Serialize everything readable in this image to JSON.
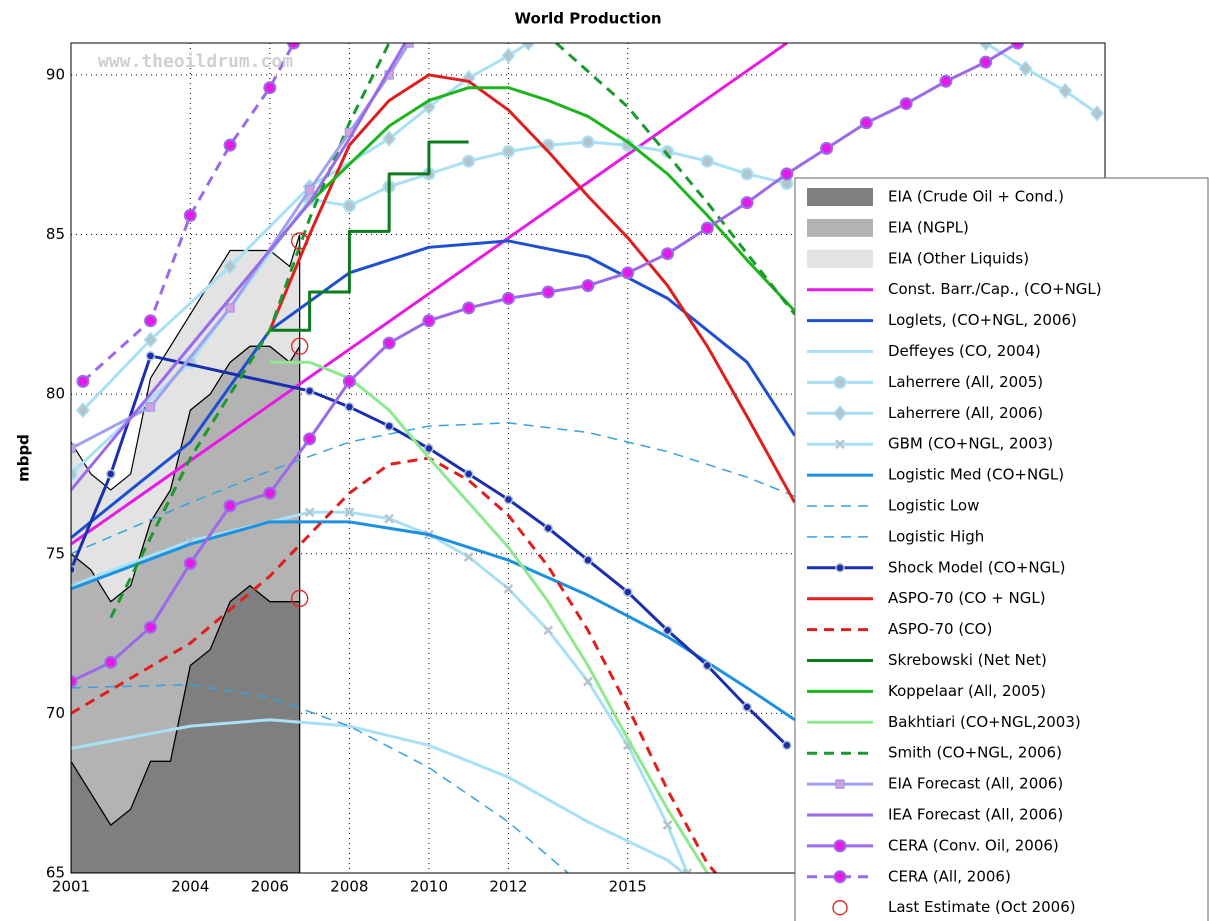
{
  "chart_data": {
    "type": "line",
    "title": "World Production",
    "ylabel": "mbpd",
    "watermark": "www.theoildrum.com",
    "xlim": [
      2001,
      2027
    ],
    "ylim": [
      65,
      91
    ],
    "xticks": [
      2001,
      2004,
      2006,
      2008,
      2010,
      2012,
      2015
    ],
    "yticks": [
      65,
      70,
      75,
      80,
      85,
      90
    ],
    "grid": true,
    "legend": "right",
    "areas": {
      "x": [
        2001,
        2001.5,
        2002,
        2002.5,
        2003,
        2003.5,
        2004,
        2004.5,
        2005,
        2005.5,
        2006,
        2006.5,
        2006.75
      ],
      "series": [
        {
          "name": "EIA (Crude Oil + Cond.)",
          "color": "#7f7f7f",
          "values": [
            68.5,
            67.5,
            66.5,
            67,
            68.5,
            68.5,
            71.5,
            72,
            73.5,
            74,
            73.5,
            73.5,
            73.5
          ]
        },
        {
          "name": "EIA (NGPL)",
          "color": "#b3b3b3",
          "values": [
            6.5,
            7,
            7,
            7,
            7.5,
            8.5,
            8,
            8,
            7.5,
            7.5,
            8,
            7.5,
            8
          ]
        },
        {
          "name": "EIA (Other Liquids)",
          "color": "#e3e3e3",
          "values": [
            3.5,
            3,
            3.5,
            3.5,
            4.5,
            4.5,
            3,
            3.5,
            3.5,
            3,
            3,
            3,
            3.5
          ]
        }
      ]
    },
    "series": [
      {
        "name": "Const. Barr./Cap., (CO+NGL)",
        "color": "#e619e6",
        "width": 3,
        "x": [
          2001,
          2019
        ],
        "values": [
          75.3,
          91
        ]
      },
      {
        "name": "Loglets, (CO+NGL, 2006)",
        "color": "#1f4fd1",
        "width": 3,
        "x": [
          2001,
          2004,
          2006,
          2008,
          2010,
          2012,
          2014,
          2016,
          2018,
          2019.2
        ],
        "values": [
          75.5,
          78.5,
          82,
          83.8,
          84.6,
          84.8,
          84.3,
          83,
          81,
          78.7
        ]
      },
      {
        "name": "Deffeyes (CO, 2004)",
        "color": "#a8e0f5",
        "width": 3,
        "x": [
          2001,
          2004,
          2006,
          2008,
          2010,
          2012,
          2014,
          2016,
          2016.4
        ],
        "values": [
          68.9,
          69.6,
          69.8,
          69.6,
          69,
          68,
          66.6,
          65.4,
          65
        ]
      },
      {
        "name": "Laherrere (All, 2005)",
        "color": "#a8e0f5",
        "width": 3,
        "marker": "circle",
        "marker_fill": "#b4c4cc",
        "x": [
          2001,
          2004,
          2007,
          2008,
          2009,
          2010,
          2011,
          2012,
          2013,
          2014,
          2015,
          2016,
          2017,
          2018,
          2019
        ],
        "values": [
          77.5,
          81,
          86.1,
          85.9,
          86.5,
          86.9,
          87.3,
          87.6,
          87.8,
          87.9,
          87.8,
          87.6,
          87.3,
          86.9,
          86.6
        ]
      },
      {
        "name": "Laherrere (All, 2006)",
        "color": "#a8e0f5",
        "width": 3,
        "marker": "diamond",
        "marker_fill": "#b4c4cc",
        "x": [
          2001.3,
          2003,
          2005,
          2007,
          2009,
          2010,
          2011,
          2012,
          2012.5,
          2018,
          2024,
          2025,
          2026,
          2026.8
        ],
        "values": [
          79.5,
          81.7,
          84,
          86.5,
          88,
          89,
          89.9,
          90.6,
          91,
          null,
          91,
          90.2,
          89.5,
          88.8
        ]
      },
      {
        "name": "GBM (CO+NGL, 2003)",
        "color": "#a8e0f5",
        "width": 3,
        "marker": "x",
        "marker_fill": "#b4c4cc",
        "x": [
          2001,
          2004,
          2007,
          2008,
          2009,
          2010,
          2011,
          2012,
          2013,
          2014,
          2015,
          2016,
          2016.5
        ],
        "values": [
          74,
          75.4,
          76.3,
          76.3,
          76.1,
          75.6,
          74.9,
          73.9,
          72.6,
          71,
          69,
          66.5,
          65
        ]
      },
      {
        "name": "Logistic Med (CO+NGL)",
        "color": "#1e90e0",
        "width": 3,
        "x": [
          2001,
          2004,
          2006,
          2008,
          2010,
          2012,
          2014,
          2016,
          2018,
          2019.2
        ],
        "values": [
          73.9,
          75.3,
          76,
          76,
          75.6,
          74.8,
          73.7,
          72.4,
          70.8,
          69.8
        ]
      },
      {
        "name": "Logistic Low",
        "color": "#3aa0e0",
        "width": 1.5,
        "dash": true,
        "x": [
          2001,
          2004,
          2006,
          2008,
          2010,
          2012,
          2013.5
        ],
        "values": [
          70.8,
          70.9,
          70.5,
          69.6,
          68.3,
          66.6,
          65
        ]
      },
      {
        "name": "Logistic High",
        "color": "#3aa0e0",
        "width": 1.5,
        "dash": true,
        "x": [
          2001,
          2004,
          2006,
          2008,
          2010,
          2012,
          2014,
          2016,
          2018,
          2019.2
        ],
        "values": [
          75,
          76.6,
          77.6,
          78.5,
          79,
          79.1,
          78.8,
          78.2,
          77.4,
          76.8
        ]
      },
      {
        "name": "Shock Model (CO+NGL)",
        "color": "#1a2fb0",
        "width": 3,
        "marker": "dot",
        "marker_fill": "#1a2fb0",
        "x": [
          2001,
          2002,
          2003,
          2007,
          2008,
          2009,
          2010,
          2011,
          2012,
          2013,
          2014,
          2015,
          2016,
          2017,
          2018,
          2019
        ],
        "values": [
          74.5,
          77.5,
          81.2,
          80.1,
          79.6,
          79,
          78.3,
          77.5,
          76.7,
          75.8,
          74.8,
          73.8,
          72.6,
          71.5,
          70.2,
          69
        ]
      },
      {
        "name": "ASPO-70 (CO + NGL)",
        "color": "#e01e1e",
        "width": 3,
        "x": [
          2006,
          2007,
          2008,
          2009,
          2010,
          2011,
          2012,
          2013,
          2014,
          2015,
          2016,
          2017,
          2018,
          2019.2
        ],
        "values": [
          82,
          85,
          87.8,
          89.2,
          90,
          89.8,
          88.9,
          87.6,
          86.2,
          84.9,
          83.4,
          81.5,
          79.3,
          76.6
        ]
      },
      {
        "name": "ASPO-70 (CO)",
        "color": "#e01e1e",
        "width": 3,
        "dash": true,
        "x": [
          2001,
          2004,
          2006,
          2007,
          2008,
          2009,
          2010,
          2011,
          2012,
          2013,
          2014,
          2015,
          2016,
          2017,
          2017.9
        ],
        "values": [
          70,
          72.2,
          74.3,
          75.6,
          76.9,
          77.8,
          78,
          77.3,
          76.2,
          74.6,
          72.6,
          70.2,
          67.6,
          65.3,
          64
        ]
      },
      {
        "name": "Skrebowski (Net Net)",
        "color": "#0e7a1e",
        "width": 3,
        "x": [
          2006,
          2007,
          2007,
          2008,
          2008,
          2009,
          2009,
          2010,
          2010,
          2011
        ],
        "values": [
          82,
          82,
          83.2,
          83.2,
          85.1,
          85.1,
          86.9,
          86.9,
          87.9,
          87.9
        ]
      },
      {
        "name": "Koppelaar (All, 2005)",
        "color": "#1eb41e",
        "width": 3,
        "x": [
          2006,
          2007,
          2008,
          2009,
          2010,
          2011,
          2012,
          2013,
          2014,
          2015,
          2016,
          2017,
          2018,
          2019.2
        ],
        "values": [
          84.5,
          86,
          87.2,
          88.4,
          89.2,
          89.6,
          89.6,
          89.2,
          88.7,
          87.9,
          86.9,
          85.6,
          84.2,
          82.6
        ]
      },
      {
        "name": "Bakhtiari (CO+NGL,2003)",
        "color": "#8ee88e",
        "width": 3,
        "x": [
          2006,
          2007,
          2008,
          2009,
          2010,
          2011,
          2012,
          2013,
          2014,
          2015,
          2016,
          2017
        ],
        "values": [
          81,
          81,
          80.5,
          79.5,
          78,
          76.6,
          75.2,
          73.5,
          71.5,
          69.2,
          67,
          65
        ]
      },
      {
        "name": "Smith (CO+NGL, 2006)",
        "color": "#1a9a2a",
        "width": 3,
        "dash": true,
        "x": [
          2002,
          2004,
          2006,
          2007,
          2008,
          2009,
          2011,
          2013.2,
          2015,
          2016,
          2017,
          2018,
          2019.2
        ],
        "values": [
          73,
          78,
          82,
          85.5,
          88.5,
          91,
          null,
          91,
          89,
          87.5,
          86,
          84.4,
          82.5
        ]
      },
      {
        "name": "EIA Forecast (All, 2006)",
        "color": "#a0a0f0",
        "width": 3,
        "marker": "square",
        "marker_fill": "#d8a0d8",
        "x": [
          2001,
          2003,
          2005,
          2007,
          2008,
          2009,
          2009.5
        ],
        "values": [
          78.3,
          79.6,
          82.7,
          86.4,
          88.2,
          90,
          91
        ]
      },
      {
        "name": "IEA Forecast (All, 2006)",
        "color": "#9a6ae8",
        "width": 3,
        "x": [
          2001,
          2004,
          2006,
          2007,
          2008,
          2009.4
        ],
        "values": [
          77,
          81.5,
          84.5,
          86,
          88,
          91
        ]
      },
      {
        "name": "CERA (Conv. Oil, 2006)",
        "color": "#9a6ae8",
        "width": 3,
        "marker": "circle",
        "marker_fill": "#e619e6",
        "x": [
          2001,
          2002,
          2003,
          2004,
          2005,
          2006,
          2007,
          2008,
          2009,
          2010,
          2011,
          2012,
          2013,
          2014,
          2015,
          2016,
          2017,
          2018,
          2019,
          2020,
          2021,
          2022,
          2023,
          2024,
          2024.8
        ],
        "values": [
          71,
          71.6,
          72.7,
          74.7,
          76.5,
          76.9,
          78.6,
          80.4,
          81.6,
          82.3,
          82.7,
          83,
          83.2,
          83.4,
          83.8,
          84.4,
          85.2,
          86,
          86.9,
          87.7,
          88.5,
          89.1,
          89.8,
          90.4,
          91
        ]
      },
      {
        "name": "CERA (All, 2006)",
        "color": "#9a6ae8",
        "width": 3,
        "dash": true,
        "marker": "circle",
        "marker_fill": "#e619e6",
        "x": [
          2001.3,
          2003,
          2004,
          2005,
          2006,
          2006.6
        ],
        "values": [
          80.4,
          82.3,
          85.6,
          87.8,
          89.6,
          91
        ]
      }
    ],
    "points": {
      "name": "Last Estimate (Oct 2006)",
      "color": "#e01e1e",
      "x": [
        2006.75,
        2006.75,
        2006.75
      ],
      "values": [
        84.8,
        81.5,
        73.6
      ]
    }
  }
}
